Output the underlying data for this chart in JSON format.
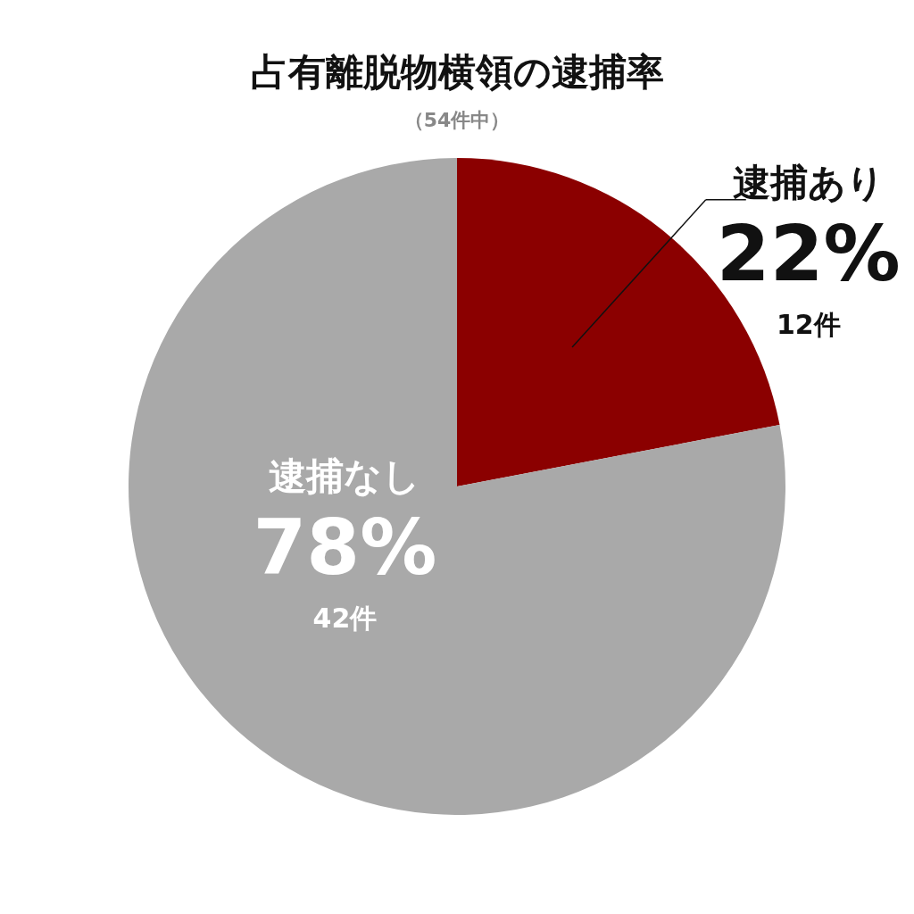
{
  "chart_data": {
    "type": "pie",
    "title": "占有離脱物横領の逮捕率",
    "subtitle": "（54件中）",
    "categories": [
      "逮捕あり",
      "逮捕なし"
    ],
    "values": [
      22,
      78
    ],
    "colors": [
      "#8b0000",
      "#a9a9a9"
    ],
    "value_labels": [
      "22%",
      "78%"
    ],
    "annotations": [
      {
        "text": "12件",
        "x": "逮捕あり"
      },
      {
        "text": "42件",
        "x": "逮捕なし"
      }
    ]
  }
}
